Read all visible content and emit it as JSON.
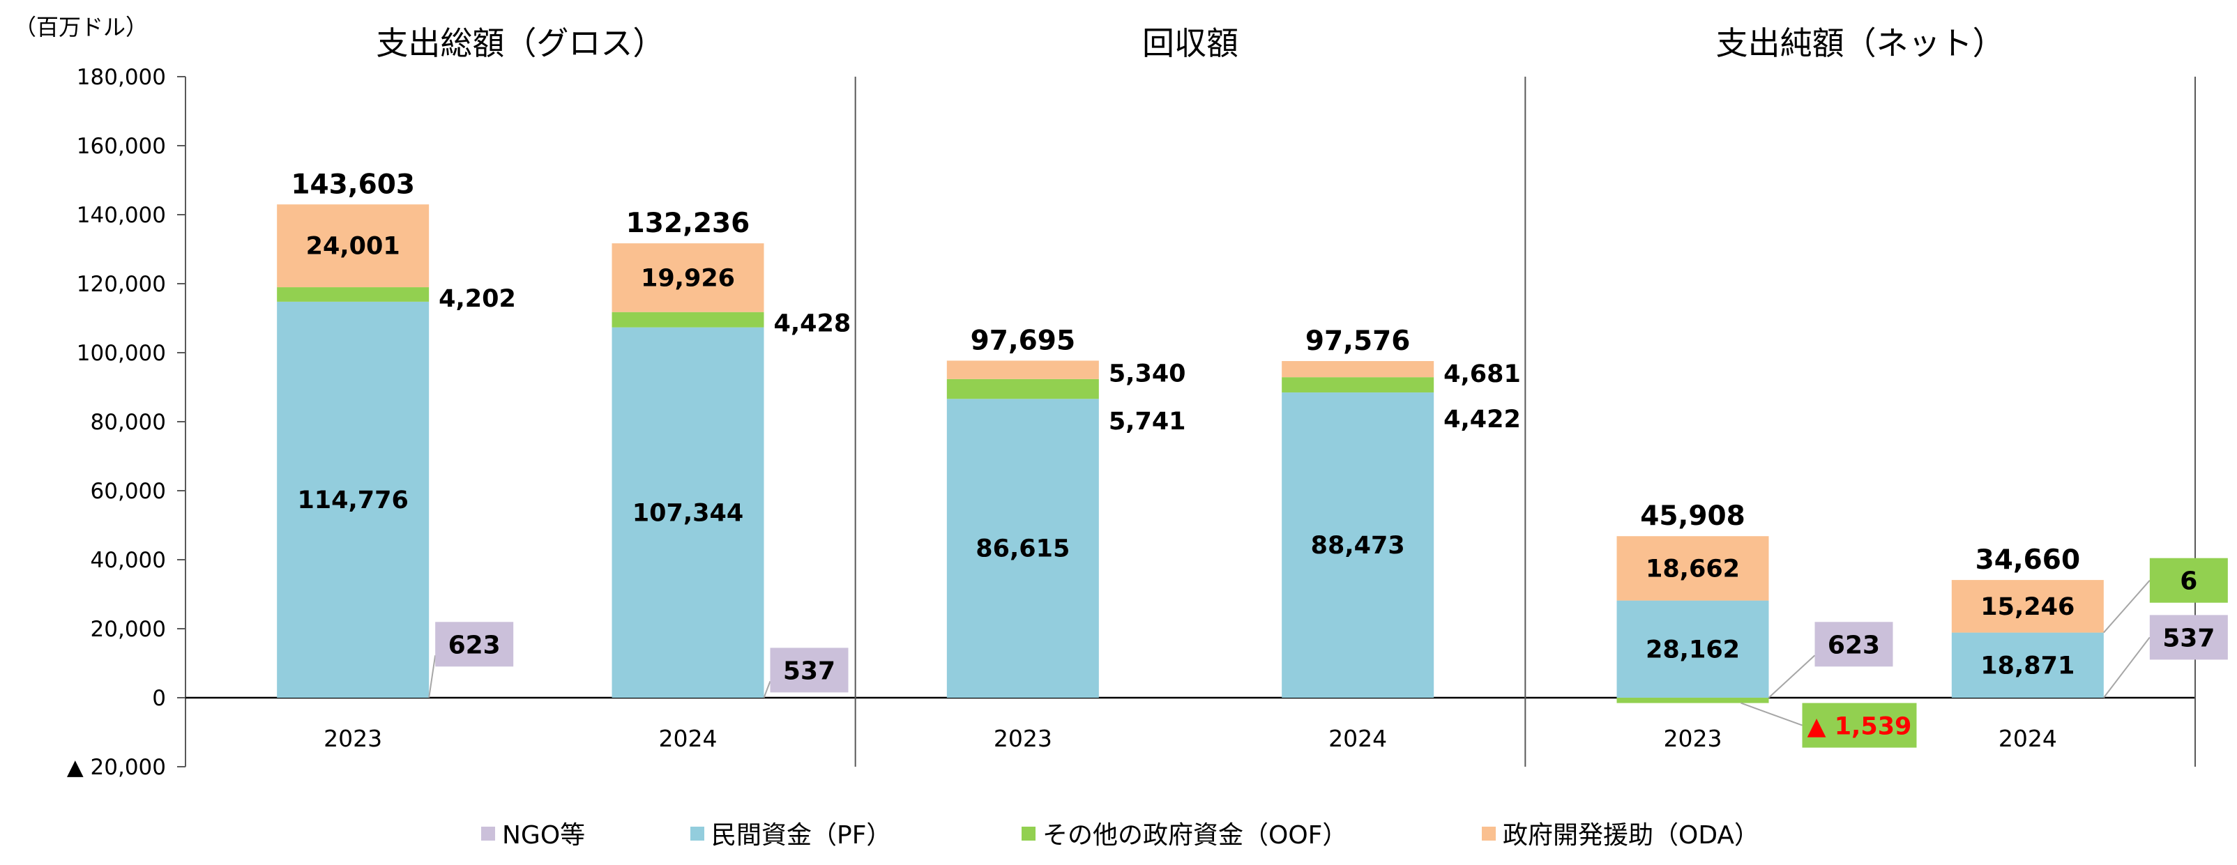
{
  "chart_data": {
    "type": "bar",
    "stacked": true,
    "unit_label": "（百万ドル）",
    "negative_prefix": "▲",
    "ylim": [
      -20000,
      180000
    ],
    "yticks": [
      -20000,
      0,
      20000,
      40000,
      60000,
      80000,
      100000,
      120000,
      140000,
      160000,
      180000
    ],
    "ytick_labels": [
      "▲ 20,000",
      "0",
      "20,000",
      "40,000",
      "60,000",
      "80,000",
      "100,000",
      "120,000",
      "140,000",
      "160,000",
      "180,000"
    ],
    "panels": [
      {
        "title": "支出総額（グロス）",
        "groups": [
          {
            "year": "2023",
            "values": {
              "NGO": 623,
              "PF": 114776,
              "OOF": 4202,
              "ODA": 24001
            },
            "labels": {
              "NGO": "623",
              "PF": "114,776",
              "OOF": "4,202",
              "ODA": "24,001"
            },
            "total": "143,603"
          },
          {
            "year": "2024",
            "values": {
              "NGO": 537,
              "PF": 107344,
              "OOF": 4428,
              "ODA": 19926
            },
            "labels": {
              "NGO": "537",
              "PF": "107,344",
              "OOF": "4,428",
              "ODA": "19,926"
            },
            "total": "132,236"
          }
        ]
      },
      {
        "title": "回収額",
        "groups": [
          {
            "year": "2023",
            "values": {
              "PF": 86615,
              "OOF": 5741,
              "ODA": 5340
            },
            "labels": {
              "PF": "86,615",
              "OOF": "5,741",
              "ODA": "5,340"
            },
            "total": "97,695"
          },
          {
            "year": "2024",
            "values": {
              "PF": 88473,
              "OOF": 4422,
              "ODA": 4681
            },
            "labels": {
              "PF": "88,473",
              "OOF": "4,422",
              "ODA": "4,681"
            },
            "total": "97,576"
          }
        ]
      },
      {
        "title": "支出純額（ネット）",
        "groups": [
          {
            "year": "2023",
            "values": {
              "NGO": 623,
              "PF": 28162,
              "OOF": -1539,
              "ODA": 18662
            },
            "labels": {
              "NGO": "623",
              "PF": "28,162",
              "OOF": "1,539",
              "ODA": "18,662"
            },
            "total": "45,908"
          },
          {
            "year": "2024",
            "values": {
              "NGO": 537,
              "PF": 18871,
              "OOF": 6,
              "ODA": 15246
            },
            "labels": {
              "NGO": "537",
              "PF": "18,871",
              "OOF": "6",
              "ODA": "15,246"
            },
            "total": "34,660"
          }
        ]
      }
    ],
    "series": [
      {
        "key": "NGO",
        "name": "NGO等",
        "color": "#cbc0da"
      },
      {
        "key": "PF",
        "name": "民間資金（PF）",
        "color": "#93cddd"
      },
      {
        "key": "OOF",
        "name": "その他の政府資金（OOF）",
        "color": "#92d050"
      },
      {
        "key": "ODA",
        "name": "政府開発援助（ODA）",
        "color": "#fac090"
      }
    ],
    "negative_label_color": "#ff0000"
  }
}
